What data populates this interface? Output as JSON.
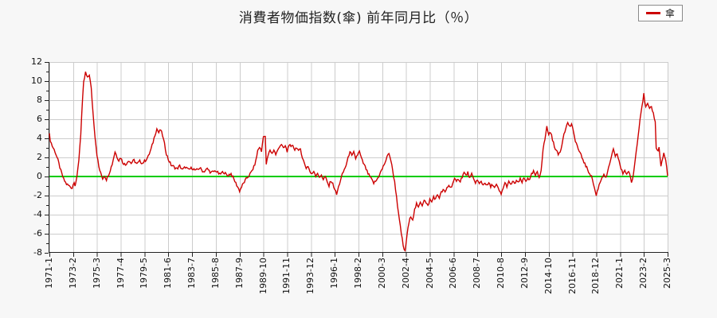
{
  "title": "消費者物価指数(傘) 前年同月比（％）",
  "legend": {
    "label": "傘"
  },
  "colors": {
    "series": "#cc0000",
    "zero_line": "#00cc00",
    "grid": "#cccccc",
    "axis": "#222222",
    "plot_bg": "#ffffff",
    "page_bg": "#f7f7f7"
  },
  "chart_data": {
    "type": "line",
    "title": "消費者物価指数(傘) 前年同月比（％）",
    "series_name": "傘",
    "xlabel": "",
    "ylabel": "",
    "ylim": [
      -8,
      12
    ],
    "y_ticks": [
      12,
      10,
      8,
      6,
      4,
      2,
      0,
      -2,
      -4,
      -6,
      -8
    ],
    "grid": true,
    "legend_position": "top-right",
    "zero_line": 0,
    "x_start": "1971-1",
    "x_end": "2025-3",
    "x_tick_interval_months": 25,
    "x_tick_labels": [
      "1971-1",
      "1973-2",
      "1975-3",
      "1977-4",
      "1979-5",
      "1981-6",
      "1983-7",
      "1985-8",
      "1987-9",
      "1989-10",
      "1991-11",
      "1993-12",
      "1996-1",
      "1998-2",
      "2000-3",
      "2002-4",
      "2004-5",
      "2006-6",
      "2008-7",
      "2010-8",
      "2012-9",
      "2014-10",
      "2016-11",
      "2018-12",
      "2021-1",
      "2023-2",
      "2025-3"
    ],
    "points": [
      [
        "1971-1",
        4.4
      ],
      [
        "1971-2",
        3.8
      ],
      [
        "1971-4",
        3.2
      ],
      [
        "1971-7",
        2.6
      ],
      [
        "1971-10",
        1.7
      ],
      [
        "1972-1",
        0.6
      ],
      [
        "1972-4",
        -0.3
      ],
      [
        "1972-7",
        -0.8
      ],
      [
        "1972-10",
        -1.0
      ],
      [
        "1973-1",
        -1.2
      ],
      [
        "1973-3",
        -0.5
      ],
      [
        "1973-4",
        -0.9
      ],
      [
        "1973-6",
        -0.1
      ],
      [
        "1973-8",
        1.8
      ],
      [
        "1973-10",
        4.5
      ],
      [
        "1973-11",
        6.5
      ],
      [
        "1973-12",
        8.2
      ],
      [
        "1974-1",
        9.8
      ],
      [
        "1974-3",
        10.9
      ],
      [
        "1974-5",
        10.3
      ],
      [
        "1974-7",
        10.7
      ],
      [
        "1974-9",
        9.2
      ],
      [
        "1974-11",
        6.5
      ],
      [
        "1975-1",
        4.2
      ],
      [
        "1975-3",
        2.3
      ],
      [
        "1975-5",
        1.0
      ],
      [
        "1975-7",
        0.3
      ],
      [
        "1975-9",
        -0.2
      ],
      [
        "1975-11",
        0.1
      ],
      [
        "1976-1",
        -0.3
      ],
      [
        "1976-4",
        0.4
      ],
      [
        "1976-7",
        1.3
      ],
      [
        "1976-10",
        2.6
      ],
      [
        "1976-12",
        2.1
      ],
      [
        "1977-2",
        1.7
      ],
      [
        "1977-4",
        2.0
      ],
      [
        "1977-6",
        1.5
      ],
      [
        "1977-9",
        1.2
      ],
      [
        "1977-12",
        1.7
      ],
      [
        "1978-3",
        1.4
      ],
      [
        "1978-6",
        1.7
      ],
      [
        "1978-9",
        1.3
      ],
      [
        "1978-12",
        1.6
      ],
      [
        "1979-3",
        1.4
      ],
      [
        "1979-6",
        1.7
      ],
      [
        "1979-9",
        2.1
      ],
      [
        "1979-12",
        2.9
      ],
      [
        "1980-2",
        3.6
      ],
      [
        "1980-4",
        4.4
      ],
      [
        "1980-6",
        5.0
      ],
      [
        "1980-8",
        4.6
      ],
      [
        "1980-10",
        4.9
      ],
      [
        "1980-12",
        4.3
      ],
      [
        "1981-2",
        3.4
      ],
      [
        "1981-4",
        2.4
      ],
      [
        "1981-6",
        1.8
      ],
      [
        "1981-9",
        1.2
      ],
      [
        "1981-12",
        1.0
      ],
      [
        "1982-3",
        0.8
      ],
      [
        "1982-6",
        1.1
      ],
      [
        "1982-9",
        0.7
      ],
      [
        "1982-12",
        1.0
      ],
      [
        "1983-3",
        0.7
      ],
      [
        "1983-7",
        0.9
      ],
      [
        "1983-11",
        0.6
      ],
      [
        "1984-3",
        0.9
      ],
      [
        "1984-7",
        0.5
      ],
      [
        "1984-11",
        0.8
      ],
      [
        "1985-3",
        0.4
      ],
      [
        "1985-8",
        0.6
      ],
      [
        "1985-12",
        0.2
      ],
      [
        "1986-4",
        0.5
      ],
      [
        "1986-8",
        0.1
      ],
      [
        "1986-12",
        0.3
      ],
      [
        "1987-3",
        -0.3
      ],
      [
        "1987-6",
        -0.9
      ],
      [
        "1987-9",
        -1.5
      ],
      [
        "1987-12",
        -0.9
      ],
      [
        "1988-3",
        -0.4
      ],
      [
        "1988-6",
        0.0
      ],
      [
        "1988-9",
        0.4
      ],
      [
        "1988-12",
        1.0
      ],
      [
        "1989-2",
        1.6
      ],
      [
        "1989-4",
        2.7
      ],
      [
        "1989-6",
        3.1
      ],
      [
        "1989-8",
        2.6
      ],
      [
        "1989-10",
        4.3
      ],
      [
        "1989-12",
        4.1
      ],
      [
        "1990-1",
        1.3
      ],
      [
        "1990-3",
        2.2
      ],
      [
        "1990-5",
        2.8
      ],
      [
        "1990-7",
        2.4
      ],
      [
        "1990-9",
        2.8
      ],
      [
        "1990-11",
        2.3
      ],
      [
        "1991-1",
        2.7
      ],
      [
        "1991-3",
        3.2
      ],
      [
        "1991-5",
        3.4
      ],
      [
        "1991-7",
        2.9
      ],
      [
        "1991-9",
        3.2
      ],
      [
        "1991-11",
        2.6
      ],
      [
        "1992-1",
        3.4
      ],
      [
        "1992-3",
        3.0
      ],
      [
        "1992-5",
        3.3
      ],
      [
        "1992-7",
        2.8
      ],
      [
        "1992-9",
        3.1
      ],
      [
        "1992-11",
        2.6
      ],
      [
        "1993-1",
        2.9
      ],
      [
        "1993-3",
        2.0
      ],
      [
        "1993-5",
        1.4
      ],
      [
        "1993-7",
        0.9
      ],
      [
        "1993-9",
        1.1
      ],
      [
        "1993-11",
        0.5
      ],
      [
        "1994-1",
        0.2
      ],
      [
        "1994-3",
        0.6
      ],
      [
        "1994-5",
        0.1
      ],
      [
        "1994-7",
        0.4
      ],
      [
        "1994-9",
        -0.2
      ],
      [
        "1994-11",
        0.2
      ],
      [
        "1995-1",
        -0.3
      ],
      [
        "1995-3",
        0.0
      ],
      [
        "1995-5",
        -0.6
      ],
      [
        "1995-7",
        -1.0
      ],
      [
        "1995-9",
        -0.4
      ],
      [
        "1995-11",
        -0.8
      ],
      [
        "1996-1",
        -1.3
      ],
      [
        "1996-3",
        -1.9
      ],
      [
        "1996-5",
        -1.1
      ],
      [
        "1996-7",
        -0.4
      ],
      [
        "1996-9",
        0.2
      ],
      [
        "1996-11",
        0.7
      ],
      [
        "1997-1",
        1.2
      ],
      [
        "1997-3",
        1.9
      ],
      [
        "1997-5",
        2.7
      ],
      [
        "1997-7",
        2.1
      ],
      [
        "1997-9",
        2.5
      ],
      [
        "1997-11",
        1.9
      ],
      [
        "1998-1",
        2.3
      ],
      [
        "1998-3",
        2.6
      ],
      [
        "1998-5",
        1.9
      ],
      [
        "1998-7",
        1.4
      ],
      [
        "1998-9",
        1.0
      ],
      [
        "1998-12",
        0.3
      ],
      [
        "1999-3",
        -0.2
      ],
      [
        "1999-6",
        -0.7
      ],
      [
        "1999-9",
        -0.4
      ],
      [
        "1999-12",
        0.2
      ],
      [
        "2000-3",
        0.8
      ],
      [
        "2000-6",
        1.5
      ],
      [
        "2000-8",
        2.0
      ],
      [
        "2000-10",
        2.5
      ],
      [
        "2000-12",
        1.7
      ],
      [
        "2001-2",
        0.6
      ],
      [
        "2001-4",
        -0.6
      ],
      [
        "2001-6",
        -2.1
      ],
      [
        "2001-8",
        -3.9
      ],
      [
        "2001-10",
        -5.3
      ],
      [
        "2001-12",
        -6.6
      ],
      [
        "2002-1",
        -7.3
      ],
      [
        "2002-3",
        -7.9
      ],
      [
        "2002-5",
        -6.1
      ],
      [
        "2002-7",
        -4.9
      ],
      [
        "2002-9",
        -4.1
      ],
      [
        "2002-11",
        -4.5
      ],
      [
        "2003-1",
        -3.5
      ],
      [
        "2003-3",
        -2.9
      ],
      [
        "2003-5",
        -3.3
      ],
      [
        "2003-7",
        -2.6
      ],
      [
        "2003-9",
        -3.0
      ],
      [
        "2003-11",
        -2.4
      ],
      [
        "2004-1",
        -2.8
      ],
      [
        "2004-3",
        -3.1
      ],
      [
        "2004-5",
        -2.4
      ],
      [
        "2004-7",
        -2.7
      ],
      [
        "2004-9",
        -2.1
      ],
      [
        "2004-11",
        -2.4
      ],
      [
        "2005-1",
        -1.9
      ],
      [
        "2005-3",
        -2.2
      ],
      [
        "2005-5",
        -1.7
      ],
      [
        "2005-7",
        -1.4
      ],
      [
        "2005-9",
        -1.7
      ],
      [
        "2005-11",
        -1.2
      ],
      [
        "2006-1",
        -0.9
      ],
      [
        "2006-3",
        -1.2
      ],
      [
        "2006-5",
        -0.7
      ],
      [
        "2006-7",
        -0.3
      ],
      [
        "2006-9",
        -0.6
      ],
      [
        "2006-11",
        -0.2
      ],
      [
        "2007-1",
        -0.5
      ],
      [
        "2007-3",
        0.0
      ],
      [
        "2007-5",
        0.4
      ],
      [
        "2007-7",
        0.1
      ],
      [
        "2007-9",
        0.4
      ],
      [
        "2007-11",
        -0.2
      ],
      [
        "2008-1",
        0.2
      ],
      [
        "2008-3",
        -0.3
      ],
      [
        "2008-5",
        -0.6
      ],
      [
        "2008-7",
        -0.4
      ],
      [
        "2008-9",
        -0.8
      ],
      [
        "2008-11",
        -0.5
      ],
      [
        "2009-1",
        -0.9
      ],
      [
        "2009-3",
        -0.6
      ],
      [
        "2009-5",
        -1.0
      ],
      [
        "2009-7",
        -0.7
      ],
      [
        "2009-9",
        -1.1
      ],
      [
        "2009-11",
        -0.8
      ],
      [
        "2010-1",
        -1.2
      ],
      [
        "2010-3",
        -0.9
      ],
      [
        "2010-5",
        -1.3
      ],
      [
        "2010-7",
        -1.7
      ],
      [
        "2010-8",
        -1.9
      ],
      [
        "2010-10",
        -1.2
      ],
      [
        "2010-12",
        -0.7
      ],
      [
        "2011-2",
        -1.0
      ],
      [
        "2011-4",
        -0.6
      ],
      [
        "2011-6",
        -0.9
      ],
      [
        "2011-8",
        -0.5
      ],
      [
        "2011-10",
        -0.8
      ],
      [
        "2011-12",
        -0.4
      ],
      [
        "2012-2",
        -0.7
      ],
      [
        "2012-4",
        -0.3
      ],
      [
        "2012-6",
        -0.6
      ],
      [
        "2012-8",
        -0.2
      ],
      [
        "2012-10",
        -0.5
      ],
      [
        "2012-12",
        -0.1
      ],
      [
        "2013-2",
        -0.4
      ],
      [
        "2013-4",
        0.2
      ],
      [
        "2013-6",
        0.5
      ],
      [
        "2013-8",
        0.1
      ],
      [
        "2013-10",
        0.4
      ],
      [
        "2013-12",
        -0.1
      ],
      [
        "2014-2",
        0.7
      ],
      [
        "2014-4",
        2.8
      ],
      [
        "2014-6",
        3.9
      ],
      [
        "2014-8",
        5.2
      ],
      [
        "2014-10",
        4.4
      ],
      [
        "2014-12",
        4.7
      ],
      [
        "2015-2",
        3.8
      ],
      [
        "2015-4",
        3.2
      ],
      [
        "2015-6",
        2.7
      ],
      [
        "2015-8",
        2.3
      ],
      [
        "2015-10",
        2.6
      ],
      [
        "2015-12",
        3.4
      ],
      [
        "2016-2",
        4.6
      ],
      [
        "2016-4",
        5.0
      ],
      [
        "2016-6",
        5.7
      ],
      [
        "2016-8",
        5.2
      ],
      [
        "2016-10",
        5.5
      ],
      [
        "2016-12",
        4.6
      ],
      [
        "2017-2",
        3.8
      ],
      [
        "2017-4",
        3.2
      ],
      [
        "2017-6",
        2.6
      ],
      [
        "2017-8",
        2.2
      ],
      [
        "2017-10",
        1.8
      ],
      [
        "2017-12",
        1.3
      ],
      [
        "2018-2",
        0.9
      ],
      [
        "2018-4",
        0.5
      ],
      [
        "2018-6",
        0.2
      ],
      [
        "2018-8",
        -0.3
      ],
      [
        "2018-10",
        -1.2
      ],
      [
        "2018-12",
        -2.0
      ],
      [
        "2019-2",
        -1.2
      ],
      [
        "2019-4",
        -0.6
      ],
      [
        "2019-6",
        -0.1
      ],
      [
        "2019-8",
        0.3
      ],
      [
        "2019-10",
        -0.2
      ],
      [
        "2019-12",
        0.5
      ],
      [
        "2020-2",
        1.2
      ],
      [
        "2020-4",
        2.2
      ],
      [
        "2020-6",
        2.8
      ],
      [
        "2020-8",
        2.0
      ],
      [
        "2020-10",
        2.4
      ],
      [
        "2020-12",
        1.6
      ],
      [
        "2021-2",
        0.8
      ],
      [
        "2021-4",
        0.3
      ],
      [
        "2021-6",
        0.7
      ],
      [
        "2021-8",
        0.2
      ],
      [
        "2021-10",
        0.6
      ],
      [
        "2021-12",
        -0.2
      ],
      [
        "2022-1",
        -0.7
      ],
      [
        "2022-3",
        0.2
      ],
      [
        "2022-5",
        1.8
      ],
      [
        "2022-7",
        3.5
      ],
      [
        "2022-9",
        5.2
      ],
      [
        "2022-11",
        6.8
      ],
      [
        "2023-1",
        8.0
      ],
      [
        "2023-2",
        8.6
      ],
      [
        "2023-4",
        7.2
      ],
      [
        "2023-6",
        7.6
      ],
      [
        "2023-8",
        7.0
      ],
      [
        "2023-10",
        7.3
      ],
      [
        "2023-12",
        6.6
      ],
      [
        "2024-2",
        5.8
      ],
      [
        "2024-3",
        2.9
      ],
      [
        "2024-5",
        2.8
      ],
      [
        "2024-6",
        3.0
      ],
      [
        "2024-8",
        1.1
      ],
      [
        "2024-10",
        2.0
      ],
      [
        "2024-11",
        2.4
      ],
      [
        "2025-1",
        1.7
      ],
      [
        "2025-3",
        0.2
      ]
    ]
  }
}
